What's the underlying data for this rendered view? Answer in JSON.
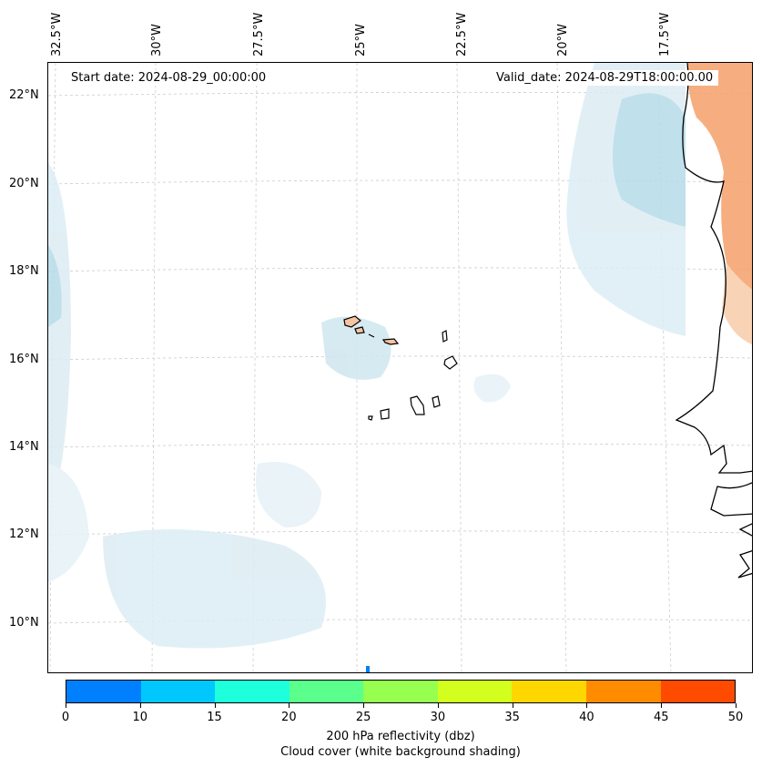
{
  "header": {
    "start_date": "Start date: 2024-08-29_00:00:00",
    "valid_date": "Valid_date: 2024-08-29T18:00:00.00"
  },
  "axes": {
    "longitude_labels": [
      "32.5°W",
      "30°W",
      "27.5°W",
      "25°W",
      "22.5°W",
      "20°W",
      "17.5°W"
    ],
    "latitude_labels": [
      "22°N",
      "20°N",
      "18°N",
      "16°N",
      "14°N",
      "12°N",
      "10°N"
    ]
  },
  "colorbar": {
    "colors": [
      "#0080ff",
      "#00c8ff",
      "#1effdc",
      "#5aff8c",
      "#96ff50",
      "#d2ff1e",
      "#ffd700",
      "#ff8c00",
      "#ff4b00"
    ],
    "ticks": [
      "0",
      "10",
      "15",
      "20",
      "25",
      "30",
      "35",
      "40",
      "45",
      "50"
    ],
    "label_line1": "200 hPa reflectivity (dbz)",
    "label_line2": "Cloud cover (white background shading)"
  },
  "colors": {
    "cloud_light": "#dcedf4",
    "cloud_mid": "#b6dbe9",
    "land_warm": "#f5a06a",
    "coastline": "#000000",
    "grid": "#cccccc"
  }
}
